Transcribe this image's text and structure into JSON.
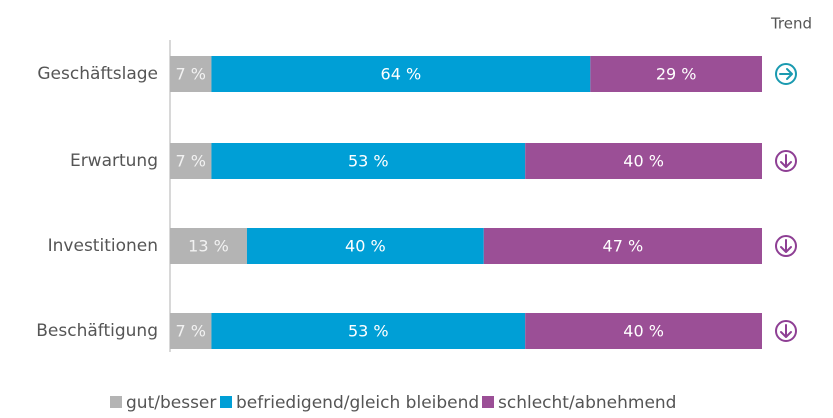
{
  "chart_data": {
    "type": "stacked-bar-horizontal",
    "categories": [
      "Geschäftslage",
      "Erwartung",
      "Investitionen",
      "Beschäftigung"
    ],
    "series": [
      {
        "name": "gut/besser",
        "color": "#b4b4b4",
        "values": [
          7,
          7,
          13,
          7
        ],
        "value_labels": [
          "7 %",
          "7 %",
          "13 %",
          "7 %"
        ]
      },
      {
        "name": "befriedigend/gleich bleibend",
        "color": "#009fd6",
        "values": [
          64,
          53,
          40,
          53
        ],
        "value_labels": [
          "64 %",
          "53 %",
          "40 %",
          "53 %"
        ]
      },
      {
        "name": "schlecht/abnehmend",
        "color": "#9b4f96",
        "values": [
          29,
          40,
          47,
          40
        ],
        "value_labels": [
          "29 %",
          "40 %",
          "47 %",
          "40 %"
        ]
      }
    ],
    "trend_title": "Trend",
    "trends": [
      "right",
      "down",
      "down",
      "down"
    ],
    "trend_colors": {
      "right": "#1a9ab0",
      "down": "#8e3f94"
    },
    "legend": "bottom"
  }
}
